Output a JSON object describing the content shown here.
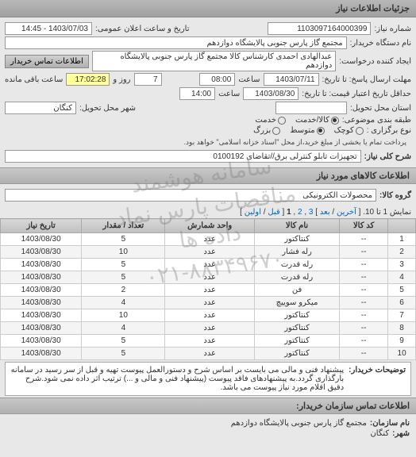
{
  "header": {
    "title": "جزئیات اطلاعات نیاز"
  },
  "form": {
    "request_no_label": "شماره نیاز:",
    "request_no": "1103097164000399",
    "announce_label": "تاریخ و ساعت اعلان عمومی:",
    "announce_value": "1403/07/03 - 14:45",
    "buyer_label": "نام دستگاه خریدار:",
    "buyer_value": "مجتمع گاز پارس جنوبی  پالایشگاه دوازدهم",
    "creator_label": "ایجاد کننده درخواست:",
    "creator_value": "عبدالهادی احمدی کارشناس کالا مجتمع گاز پارس جنوبی  پالایشگاه دوازدهم",
    "contact_btn": "اطلاعات تماس خریدار",
    "deadline_label": "مهلت ارسال پاسخ: تا تاریخ:",
    "deadline_date": "1403/07/11",
    "time_label": "ساعت",
    "deadline_time": "08:00",
    "days_label": "روز و",
    "days_value": "7",
    "remaining_label": "ساعت باقی مانده",
    "remaining_value": "17:02:28",
    "validity_label": "حداقل تاریخ اعتبار قیمت: تا تاریخ:",
    "validity_date": "1403/08/30",
    "validity_time": "14:00",
    "delivery_state_label": "استان محل تحویل:",
    "delivery_city_label": "شهر محل تحویل:",
    "delivery_city": "کنگان",
    "category_label": "طبقه بندی موضوعی:",
    "cat_goods": "کالا/خدمت",
    "cat_service": "خدمت",
    "amount_type_label": "نوع برگزاری :",
    "amount_small": "کوچک",
    "amount_medium": "متوسط",
    "amount_large": "بزرگ",
    "note_text": "پرداخت تمام یا بخشی از مبلغ خرید،از محل \"اسناد خزانه اسلامی\" خواهد بود.",
    "subject_label": "شرح کلی نیاز:",
    "subject_value": "تجهیزات تابلو کنترلی برق//تقاضای 0100192"
  },
  "items_section": {
    "title": "اطلاعات کالاهای مورد نیاز",
    "group_label": "گروه کالا:",
    "group_value": "محصولات الکترونیکی",
    "pager_text": "نمایش 1 تا 10.",
    "pager_last": "آخرین",
    "pager_next": "بعد",
    "pager_p3": "3",
    "pager_p2": "2",
    "pager_p1": "1",
    "pager_prev": "قبل",
    "pager_first": "اولین",
    "columns": [
      "",
      "کد کالا",
      "نام کالا",
      "واحد شمارش",
      "تعداد / مقدار",
      "تاریخ نیاز"
    ],
    "rows": [
      [
        "1",
        "--",
        "کنتاکتور",
        "عدد",
        "5",
        "1403/08/30"
      ],
      [
        "2",
        "--",
        "رله فشار",
        "عدد",
        "10",
        "1403/08/30"
      ],
      [
        "3",
        "--",
        "رله قدرت",
        "عدد",
        "5",
        "1403/08/30"
      ],
      [
        "4",
        "--",
        "رله قدرت",
        "عدد",
        "5",
        "1403/08/30"
      ],
      [
        "5",
        "--",
        "فن",
        "عدد",
        "2",
        "1403/08/30"
      ],
      [
        "6",
        "--",
        "میکرو سوییچ",
        "عدد",
        "4",
        "1403/08/30"
      ],
      [
        "7",
        "--",
        "کنتاکتور",
        "عدد",
        "10",
        "1403/08/30"
      ],
      [
        "8",
        "--",
        "کنتاکتور",
        "عدد",
        "4",
        "1403/08/30"
      ],
      [
        "9",
        "--",
        "کنتاکتور",
        "عدد",
        "5",
        "1403/08/30"
      ],
      [
        "10",
        "--",
        "کنتاکتور",
        "عدد",
        "5",
        "1403/08/30"
      ]
    ]
  },
  "note": {
    "label": "توضیحات خریدار:",
    "text": "پیشنهاد فنی و مالی می بایست بر اساس شرح و دستورالعمل پیوست تهیه و قبل از سر رسید در سامانه بارگذاری گردد.به پیشنهادهای فاقد پیوست (پیشنهاد فنی و مالی و ...) ترتیب اثر داده نمی شود.شرح دقیق اقلام مورد نیاز پیوست می باشد."
  },
  "footer": {
    "title": "اطلاعات تماس سازمان خریدار:",
    "org_label": "نام سازمان:",
    "org_value": "مجتمع گاز پارس جنوبی پالایشگاه دوازدهم",
    "city_label": "شهر:",
    "city_value": "کنگان"
  },
  "watermark": "سامانه هوشمند مناقصات پارس نماد داده ها\n۰۲۱-۸۸۳۴۹۶۷۰"
}
